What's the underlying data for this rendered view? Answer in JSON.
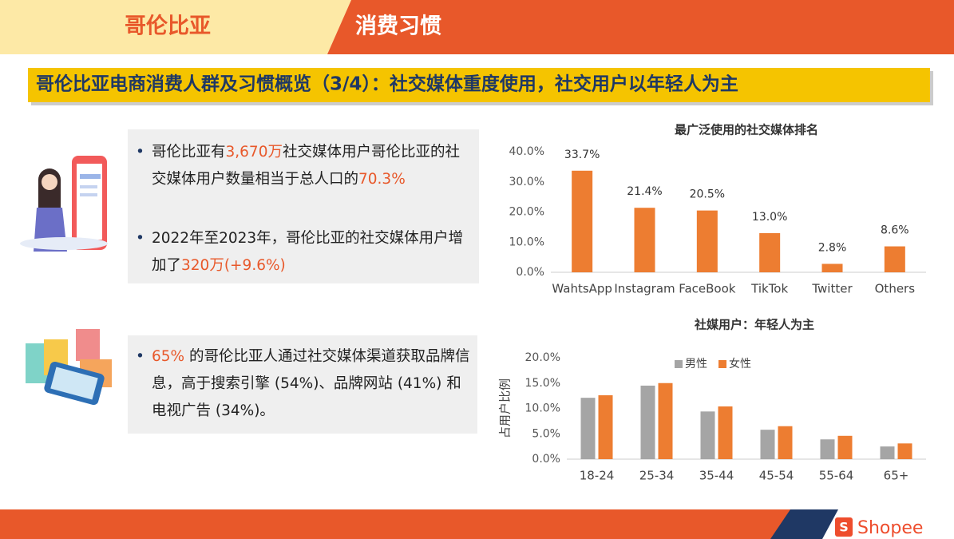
{
  "header": {
    "country": "哥伦比亚",
    "topic": "消费习惯"
  },
  "title": "哥伦比亚电商消费人群及习惯概览（3/4）：社交媒体重度使用，社交用户以年轻人为主",
  "bullets": [
    [
      "哥伦比亚有",
      "3,670万",
      "社交媒体用户哥伦比亚的社交媒体用户数量相当于总人口的",
      "70.3%"
    ],
    [
      "2022年至2023年，哥伦比亚的社交媒体用户增加了",
      "320万(+9.6%)"
    ],
    [
      "",
      "65%",
      " 的哥伦比亚人通过社交媒体渠道获取品牌信息，高于搜索引擎 (54%)、品牌网站 (41%) 和电视广告 (34%)。"
    ]
  ],
  "chart_data": [
    {
      "type": "bar",
      "title": "最广泛使用的社交媒体排名",
      "categories": [
        "WahtsApp",
        "Instagram",
        "FaceBook",
        "TikTok",
        "Twitter",
        "Others"
      ],
      "values": [
        33.7,
        21.4,
        20.5,
        13.0,
        2.8,
        8.6
      ],
      "value_labels": [
        "33.7%",
        "21.4%",
        "20.5%",
        "13.0%",
        "2.8%",
        "8.6%"
      ],
      "color": "#ed7d31",
      "ylim": [
        0,
        40
      ],
      "yticks": [
        {
          "value": 0,
          "label": "0.0%"
        },
        {
          "value": 10,
          "label": "10.0%"
        },
        {
          "value": 20,
          "label": "20.0%"
        },
        {
          "value": 30,
          "label": "30.0%"
        },
        {
          "value": 40,
          "label": "40.0%"
        }
      ]
    },
    {
      "type": "bar",
      "title": "社媒用户：年轻人为主",
      "y_label": "占用户比例",
      "categories": [
        "18-24",
        "25-34",
        "35-44",
        "45-54",
        "55-64",
        "65+"
      ],
      "series": [
        {
          "name": "男性",
          "color": "#a5a5a5",
          "values": [
            12.1,
            14.5,
            9.4,
            5.8,
            3.9,
            2.5
          ]
        },
        {
          "name": "女性",
          "color": "#ed7d31",
          "values": [
            12.6,
            15.0,
            10.4,
            6.5,
            4.6,
            3.1
          ]
        }
      ],
      "ylim": [
        0,
        20
      ],
      "yticks": [
        {
          "value": 0,
          "label": "0.0%"
        },
        {
          "value": 5,
          "label": "5.0%"
        },
        {
          "value": 10,
          "label": "10.0%"
        },
        {
          "value": 15,
          "label": "15.0%"
        },
        {
          "value": 20,
          "label": "20.0%"
        }
      ],
      "legend": "top"
    }
  ],
  "footer": {
    "brand": "Shopee"
  }
}
